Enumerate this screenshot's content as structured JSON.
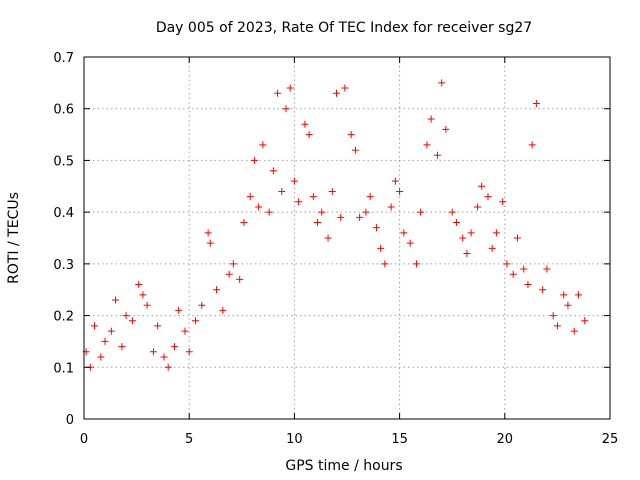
{
  "chart_data": {
    "type": "scatter",
    "title": "Day 005 of 2023, Rate Of TEC Index for receiver sg27",
    "xlabel": "GPS time / hours",
    "ylabel": "ROTI / TECUs",
    "xlim": [
      0,
      25
    ],
    "ylim": [
      0,
      0.7
    ],
    "x_ticks": [
      "0",
      "5",
      "10",
      "15",
      "20",
      "25"
    ],
    "y_ticks": [
      "0",
      "0.1",
      "0.2",
      "0.3",
      "0.4",
      "0.5",
      "0.6",
      "0.7"
    ],
    "grid": true,
    "marker": "+",
    "color": "#ff0000",
    "series": [
      {
        "x": [
          0.1,
          0.3,
          0.5,
          0.8,
          1.0,
          1.3,
          1.5,
          1.8,
          2.0,
          2.3,
          2.6,
          2.8,
          3.0,
          3.3,
          3.5,
          3.8,
          4.0,
          4.3,
          4.5,
          4.8,
          5.0,
          5.3,
          5.6,
          5.9,
          6.0,
          6.3,
          6.6,
          6.9,
          7.1,
          7.4,
          7.6,
          7.9,
          8.1,
          8.3,
          8.5,
          8.8,
          9.0,
          9.2,
          9.4,
          9.6,
          9.8,
          10.0,
          10.2,
          10.5,
          10.7,
          10.9,
          11.1,
          11.3,
          11.6,
          11.8,
          12.0,
          12.2,
          12.4,
          12.7,
          12.9,
          13.1,
          13.4,
          13.6,
          13.9,
          14.1,
          14.3,
          14.6,
          14.8,
          15.0,
          15.2,
          15.5,
          15.8,
          16.0,
          16.3,
          16.5,
          16.8,
          17.0,
          17.2,
          17.5,
          17.7,
          18.0,
          18.2,
          18.4,
          18.7,
          18.9,
          19.2,
          19.4,
          19.6,
          19.9,
          20.1,
          20.4,
          20.6,
          20.9,
          21.1,
          21.3,
          21.5,
          21.8,
          22.0,
          22.3,
          22.5,
          22.8,
          23.0,
          23.3,
          23.5,
          23.8
        ],
        "y": [
          0.13,
          0.1,
          0.18,
          0.12,
          0.15,
          0.17,
          0.23,
          0.14,
          0.2,
          0.19,
          0.26,
          0.24,
          0.22,
          0.13,
          0.18,
          0.12,
          0.1,
          0.14,
          0.21,
          0.17,
          0.13,
          0.19,
          0.22,
          0.36,
          0.34,
          0.25,
          0.21,
          0.28,
          0.3,
          0.27,
          0.38,
          0.43,
          0.5,
          0.41,
          0.53,
          0.4,
          0.48,
          0.63,
          0.44,
          0.6,
          0.64,
          0.46,
          0.42,
          0.57,
          0.55,
          0.43,
          0.38,
          0.4,
          0.35,
          0.44,
          0.63,
          0.39,
          0.64,
          0.55,
          0.52,
          0.39,
          0.4,
          0.43,
          0.37,
          0.33,
          0.3,
          0.41,
          0.46,
          0.44,
          0.36,
          0.34,
          0.3,
          0.4,
          0.53,
          0.58,
          0.51,
          0.65,
          0.56,
          0.4,
          0.38,
          0.35,
          0.32,
          0.36,
          0.41,
          0.45,
          0.43,
          0.33,
          0.36,
          0.42,
          0.3,
          0.28,
          0.35,
          0.29,
          0.26,
          0.53,
          0.61,
          0.25,
          0.29,
          0.2,
          0.18,
          0.24,
          0.22,
          0.17,
          0.24,
          0.19
        ]
      }
    ]
  }
}
